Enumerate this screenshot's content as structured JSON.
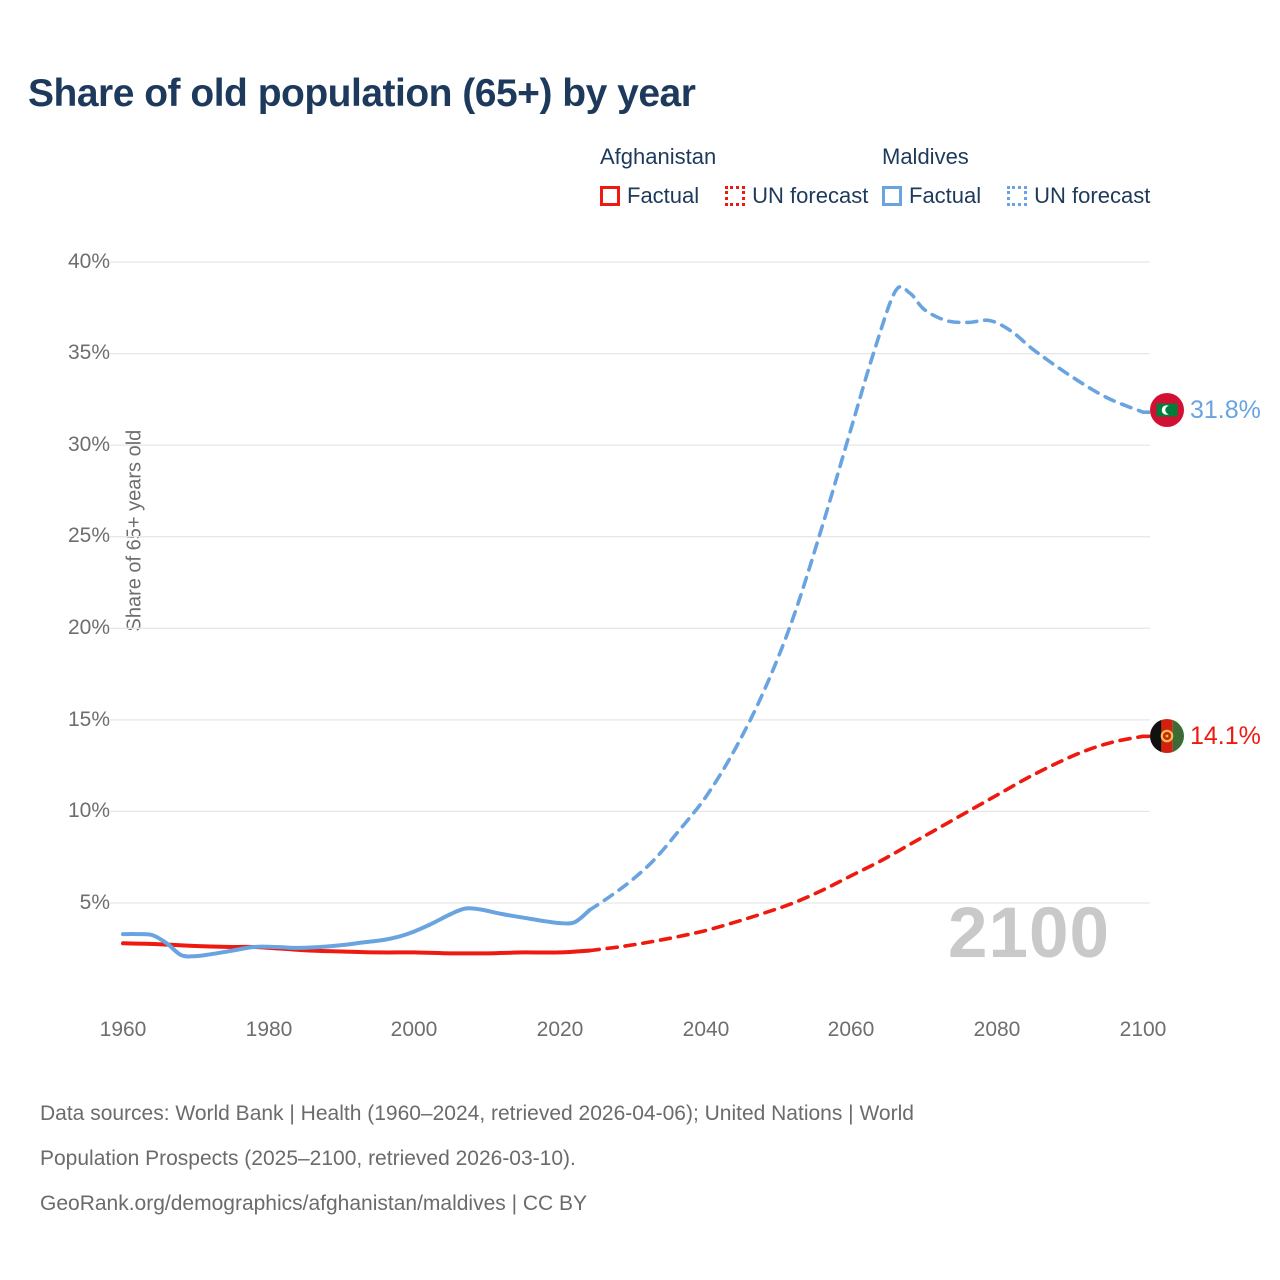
{
  "title": "Share of old population (65+) by year",
  "legend": {
    "groups": [
      {
        "country": "Afghanistan",
        "color": "#ee1a10",
        "items": [
          {
            "label": "Factual",
            "style": "solid"
          },
          {
            "label": "UN forecast",
            "style": "dotted"
          }
        ]
      },
      {
        "country": "Maldives",
        "color": "#69a4e0",
        "items": [
          {
            "label": "Factual",
            "style": "solid"
          },
          {
            "label": "UN forecast",
            "style": "dotted"
          }
        ]
      }
    ]
  },
  "watermark": "2100",
  "end_labels": [
    {
      "series": "Maldives",
      "value": "31.8%",
      "color": "#69a4e0",
      "flag": "maldives-flag"
    },
    {
      "series": "Afghanistan",
      "value": "14.1%",
      "color": "#ee1a10",
      "flag": "afghanistan-flag"
    }
  ],
  "footer": {
    "line1": "Data sources: World Bank | Health (1960–2024, retrieved 2026-04-06); United Nations | World",
    "line2": "Population Prospects (2025–2100, retrieved 2026-03-10).",
    "line3": "GeoRank.org/demographics/afghanistan/maldives | CC BY"
  },
  "chart_data": {
    "type": "line",
    "title": "Share of old population (65+) by year",
    "xlabel": "",
    "ylabel": "Share of 65+ years old",
    "xlim": [
      1958,
      2102
    ],
    "ylim": [
      0.5,
      41
    ],
    "grid": "horizontal",
    "legend_position": "top-right",
    "x_ticks": [
      1960,
      1980,
      2000,
      2020,
      2040,
      2060,
      2080,
      2100
    ],
    "y_tick_labels_top_down": [
      "40%",
      "35%",
      "30%",
      "25%",
      "20%",
      "15%",
      "10%",
      "5%"
    ],
    "y_tick_values": [
      5,
      10,
      15,
      20,
      25,
      30,
      35,
      40
    ],
    "unit": "%",
    "series": [
      {
        "name": "Afghanistan Factual",
        "color": "#ee1a10",
        "dash": "solid",
        "points": [
          [
            1960,
            2.8
          ],
          [
            1965,
            2.75
          ],
          [
            1970,
            2.65
          ],
          [
            1975,
            2.6
          ],
          [
            1978,
            2.6
          ],
          [
            1982,
            2.5
          ],
          [
            1986,
            2.4
          ],
          [
            1990,
            2.35
          ],
          [
            1995,
            2.3
          ],
          [
            2000,
            2.3
          ],
          [
            2005,
            2.25
          ],
          [
            2010,
            2.25
          ],
          [
            2015,
            2.3
          ],
          [
            2020,
            2.3
          ],
          [
            2024,
            2.4
          ]
        ]
      },
      {
        "name": "Afghanistan UN forecast",
        "color": "#ee1a10",
        "dash": "dashed",
        "end_label": "14.1%",
        "points": [
          [
            2024,
            2.4
          ],
          [
            2028,
            2.6
          ],
          [
            2032,
            2.85
          ],
          [
            2036,
            3.15
          ],
          [
            2040,
            3.5
          ],
          [
            2044,
            3.95
          ],
          [
            2048,
            4.45
          ],
          [
            2052,
            5.0
          ],
          [
            2056,
            5.7
          ],
          [
            2060,
            6.5
          ],
          [
            2064,
            7.3
          ],
          [
            2068,
            8.2
          ],
          [
            2072,
            9.1
          ],
          [
            2076,
            10.0
          ],
          [
            2080,
            10.9
          ],
          [
            2084,
            11.8
          ],
          [
            2088,
            12.6
          ],
          [
            2092,
            13.3
          ],
          [
            2096,
            13.8
          ],
          [
            2100,
            14.1
          ]
        ]
      },
      {
        "name": "Maldives Factual",
        "color": "#69a4e0",
        "dash": "solid",
        "points": [
          [
            1960,
            3.3
          ],
          [
            1962,
            3.3
          ],
          [
            1964,
            3.25
          ],
          [
            1966,
            2.8
          ],
          [
            1968,
            2.15
          ],
          [
            1970,
            2.1
          ],
          [
            1972,
            2.2
          ],
          [
            1975,
            2.4
          ],
          [
            1978,
            2.6
          ],
          [
            1981,
            2.6
          ],
          [
            1984,
            2.55
          ],
          [
            1987,
            2.6
          ],
          [
            1990,
            2.7
          ],
          [
            1993,
            2.85
          ],
          [
            1996,
            3.0
          ],
          [
            1999,
            3.3
          ],
          [
            2002,
            3.8
          ],
          [
            2005,
            4.4
          ],
          [
            2007,
            4.7
          ],
          [
            2009,
            4.65
          ],
          [
            2012,
            4.4
          ],
          [
            2015,
            4.2
          ],
          [
            2018,
            4.0
          ],
          [
            2020,
            3.9
          ],
          [
            2022,
            3.95
          ],
          [
            2024,
            4.6
          ]
        ]
      },
      {
        "name": "Maldives UN forecast",
        "color": "#69a4e0",
        "dash": "dashed",
        "end_label": "31.8%",
        "points": [
          [
            2024,
            4.6
          ],
          [
            2027,
            5.4
          ],
          [
            2030,
            6.3
          ],
          [
            2033,
            7.4
          ],
          [
            2036,
            8.8
          ],
          [
            2040,
            10.8
          ],
          [
            2044,
            13.4
          ],
          [
            2048,
            16.6
          ],
          [
            2052,
            20.6
          ],
          [
            2056,
            25.6
          ],
          [
            2060,
            31.0
          ],
          [
            2063,
            35.0
          ],
          [
            2066,
            38.4
          ],
          [
            2068,
            38.3
          ],
          [
            2070,
            37.4
          ],
          [
            2073,
            36.8
          ],
          [
            2076,
            36.7
          ],
          [
            2079,
            36.8
          ],
          [
            2082,
            36.2
          ],
          [
            2085,
            35.2
          ],
          [
            2090,
            33.8
          ],
          [
            2095,
            32.6
          ],
          [
            2100,
            31.8
          ]
        ]
      }
    ]
  }
}
